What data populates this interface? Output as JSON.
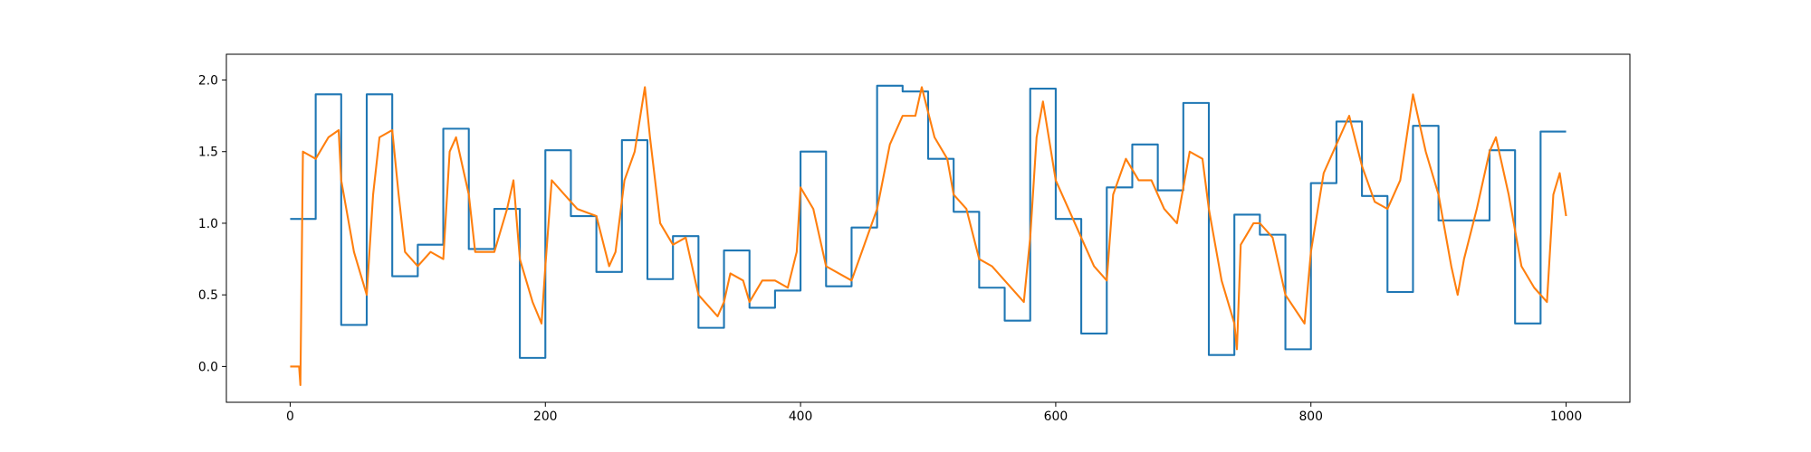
{
  "chart_data": {
    "type": "line",
    "xlim": [
      -50,
      1050
    ],
    "ylim": [
      -0.25,
      2.18
    ],
    "xticks": [
      0,
      200,
      400,
      600,
      800,
      1000
    ],
    "yticks": [
      {
        "value": 0,
        "label": "0.0"
      },
      0.5,
      {
        "value": 1,
        "label": "1.0"
      },
      1.5,
      {
        "value": 2,
        "label": "2.0"
      }
    ],
    "series": [
      {
        "color": "#1f77b4",
        "drawstyle": "steps-post",
        "x": [
          0,
          20,
          40,
          60,
          80,
          100,
          120,
          140,
          160,
          180,
          200,
          220,
          240,
          260,
          280,
          300,
          320,
          340,
          360,
          380,
          400,
          420,
          440,
          460,
          480,
          500,
          520,
          540,
          560,
          580,
          600,
          620,
          640,
          660,
          680,
          700,
          720,
          740,
          760,
          780,
          800,
          820,
          840,
          860,
          880,
          900,
          920,
          940,
          960,
          980,
          1000
        ],
        "values": [
          1.03,
          1.9,
          0.29,
          1.9,
          0.63,
          0.85,
          1.66,
          0.82,
          1.1,
          0.06,
          1.51,
          1.05,
          0.66,
          1.58,
          0.61,
          0.91,
          0.27,
          0.81,
          0.41,
          0.53,
          1.5,
          0.56,
          0.97,
          1.96,
          1.92,
          1.45,
          1.08,
          0.55,
          0.32,
          1.94,
          1.03,
          0.23,
          1.25,
          1.55,
          1.23,
          1.84,
          0.08,
          1.06,
          0.92,
          0.12,
          1.28,
          1.71,
          1.19,
          0.52,
          1.68,
          1.02,
          1.02,
          1.51,
          0.3,
          1.64,
          1.64
        ]
      },
      {
        "color": "#ff7f0e",
        "drawstyle": "default",
        "x": [
          0,
          7,
          8,
          10,
          20,
          30,
          38,
          40,
          50,
          60,
          65,
          70,
          80,
          85,
          90,
          100,
          110,
          120,
          125,
          130,
          140,
          145,
          160,
          170,
          175,
          180,
          190,
          197,
          200,
          205,
          215,
          225,
          240,
          250,
          255,
          262,
          270,
          278,
          282,
          290,
          300,
          310,
          320,
          335,
          340,
          345,
          355,
          360,
          370,
          380,
          390,
          397,
          400,
          410,
          420,
          430,
          440,
          450,
          460,
          470,
          480,
          490,
          495,
          505,
          515,
          520,
          530,
          540,
          550,
          560,
          575,
          580,
          585,
          590,
          600,
          610,
          620,
          630,
          640,
          645,
          655,
          665,
          675,
          685,
          695,
          705,
          715,
          720,
          730,
          740,
          742,
          745,
          755,
          760,
          770,
          780,
          795,
          800,
          810,
          820,
          830,
          840,
          850,
          860,
          870,
          880,
          890,
          900,
          910,
          915,
          920,
          930,
          940,
          945,
          955,
          965,
          975,
          985,
          990,
          995,
          1000
        ],
        "values": [
          0,
          0,
          -0.13,
          1.5,
          1.45,
          1.6,
          1.65,
          1.3,
          0.8,
          0.5,
          1.2,
          1.6,
          1.65,
          1.2,
          0.8,
          0.7,
          0.8,
          0.75,
          1.5,
          1.6,
          1.2,
          0.8,
          0.8,
          1.1,
          1.3,
          0.75,
          0.45,
          0.3,
          0.7,
          1.3,
          1.2,
          1.1,
          1.05,
          0.7,
          0.8,
          1.3,
          1.5,
          1.95,
          1.6,
          1,
          0.85,
          0.9,
          0.5,
          0.35,
          0.45,
          0.65,
          0.6,
          0.45,
          0.6,
          0.6,
          0.55,
          0.8,
          1.25,
          1.1,
          0.7,
          0.65,
          0.6,
          0.85,
          1.1,
          1.55,
          1.75,
          1.75,
          1.95,
          1.6,
          1.45,
          1.2,
          1.1,
          0.75,
          0.7,
          0.6,
          0.45,
          0.9,
          1.6,
          1.85,
          1.3,
          1.1,
          0.9,
          0.7,
          0.6,
          1.2,
          1.45,
          1.3,
          1.3,
          1.1,
          1,
          1.5,
          1.45,
          1.1,
          0.6,
          0.3,
          0.12,
          0.85,
          1,
          1,
          0.9,
          0.5,
          0.3,
          0.8,
          1.35,
          1.55,
          1.75,
          1.4,
          1.15,
          1.1,
          1.3,
          1.9,
          1.5,
          1.2,
          0.7,
          0.5,
          0.75,
          1.1,
          1.5,
          1.6,
          1.2,
          0.7,
          0.55,
          0.45,
          1.2,
          1.35,
          1.05
        ]
      }
    ]
  }
}
